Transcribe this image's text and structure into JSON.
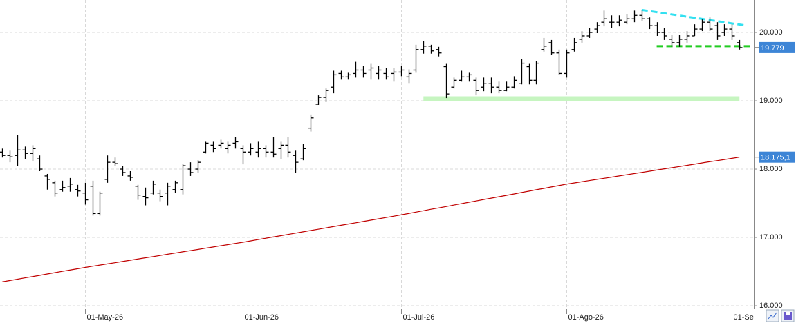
{
  "chart_data": {
    "type": "ohlc",
    "categories": [
      null,
      null,
      null,
      null,
      null,
      null,
      null,
      null,
      null,
      null,
      null,
      "01-May-26",
      null,
      null,
      null,
      null,
      null,
      null,
      null,
      null,
      null,
      null,
      null,
      null,
      null,
      null,
      null,
      null,
      null,
      null,
      null,
      null,
      "01-Jun-26",
      null,
      null,
      null,
      null,
      null,
      null,
      null,
      null,
      null,
      null,
      null,
      null,
      null,
      null,
      null,
      null,
      null,
      null,
      null,
      null,
      "01-Jul-26",
      null,
      null,
      null,
      null,
      null,
      null,
      null,
      null,
      null,
      null,
      null,
      null,
      null,
      null,
      null,
      null,
      null,
      null,
      null,
      null,
      null,
      "01-Ago-26",
      null,
      null,
      null,
      null,
      null,
      null,
      null,
      null,
      null,
      null,
      null,
      null,
      null,
      null,
      null,
      null,
      null,
      null,
      null,
      null,
      null,
      "01-Se",
      null
    ],
    "color": "#000000",
    "open": [
      18250,
      18200,
      18200,
      18280,
      18230,
      18150,
      17900,
      17800,
      17700,
      17750,
      17700,
      17650,
      17750,
      17350,
      17850,
      18100,
      18000,
      17900,
      17750,
      17600,
      17650,
      17650,
      17650,
      17700,
      17700,
      18000,
      18000,
      18250,
      18350,
      18350,
      18300,
      18380,
      18300,
      18250,
      18250,
      18300,
      18250,
      18300,
      18350,
      18200,
      18150,
      18600,
      18950,
      19050,
      19200,
      19400,
      19350,
      19400,
      19450,
      19450,
      19400,
      19400,
      19400,
      19420,
      19350,
      19450,
      19750,
      19800,
      19750,
      19500,
      19200,
      19300,
      19350,
      19300,
      19200,
      19250,
      19200,
      19150,
      19200,
      19250,
      19500,
      19300,
      19750,
      19850,
      19700,
      19400,
      19750,
      19900,
      19950,
      20050,
      20150,
      20150,
      20150,
      20150,
      20200,
      20250,
      20200,
      20100,
      20000,
      19900,
      19850,
      19900,
      19950,
      20050,
      20150,
      20100,
      20000,
      20050,
      19850
    ],
    "high": [
      18300,
      18270,
      18500,
      18330,
      18350,
      18200,
      17930,
      17830,
      17830,
      17870,
      17770,
      17800,
      17830,
      17670,
      18200,
      18170,
      18050,
      17970,
      17770,
      17730,
      17830,
      17700,
      17800,
      17830,
      18070,
      18100,
      18130,
      18400,
      18400,
      18430,
      18400,
      18470,
      18350,
      18380,
      18400,
      18350,
      18470,
      18400,
      18470,
      18270,
      18370,
      18800,
      19080,
      19180,
      19440,
      19440,
      19410,
      19570,
      19510,
      19540,
      19510,
      19480,
      19480,
      19510,
      19460,
      19820,
      19870,
      19820,
      19790,
      19540,
      19340,
      19440,
      19410,
      19340,
      19340,
      19340,
      19280,
      19280,
      19360,
      19610,
      19540,
      19580,
      19920,
      19890,
      19750,
      19750,
      19920,
      20020,
      20070,
      20150,
      20320,
      20250,
      20250,
      20270,
      20320,
      20320,
      20220,
      20150,
      20070,
      19970,
      19970,
      20020,
      20120,
      20190,
      20220,
      20150,
      20120,
      20120,
      19890
    ],
    "low": [
      18170,
      18100,
      18050,
      18150,
      18120,
      17970,
      17700,
      17600,
      17670,
      17670,
      17600,
      17480,
      17320,
      17320,
      17800,
      18050,
      17900,
      17830,
      17550,
      17470,
      17630,
      17530,
      17470,
      17650,
      17630,
      17900,
      17950,
      18230,
      18250,
      18300,
      18230,
      18300,
      18070,
      18200,
      18170,
      18170,
      18170,
      18150,
      18170,
      17950,
      18130,
      18550,
      18940,
      18980,
      19110,
      19310,
      19310,
      19340,
      19340,
      19310,
      19310,
      19310,
      19280,
      19360,
      19260,
      19410,
      19690,
      19690,
      19650,
      19040,
      19180,
      19280,
      19280,
      19080,
      19140,
      19110,
      19110,
      19140,
      19180,
      19240,
      19240,
      19240,
      19720,
      19670,
      19380,
      19340,
      19720,
      19850,
      19920,
      19990,
      20090,
      20070,
      20090,
      20120,
      20150,
      20170,
      20050,
      19950,
      19890,
      19790,
      19790,
      19850,
      19950,
      20020,
      20020,
      19890,
      19950,
      19890,
      19750
    ],
    "close": [
      18200,
      18180,
      18280,
      18230,
      18300,
      18000,
      17850,
      17650,
      17730,
      17780,
      17680,
      17550,
      17350,
      17650,
      18100,
      18080,
      17950,
      17880,
      17620,
      17580,
      17780,
      17600,
      17750,
      17800,
      18050,
      17950,
      18100,
      18380,
      18300,
      18380,
      18350,
      18400,
      18250,
      18300,
      18300,
      18250,
      18220,
      18350,
      18250,
      18100,
      18300,
      18750,
      19050,
      19150,
      19380,
      19350,
      19380,
      19450,
      19400,
      19480,
      19450,
      19350,
      19420,
      19450,
      19400,
      19750,
      19800,
      19730,
      19700,
      19100,
      19300,
      19350,
      19380,
      19150,
      19250,
      19200,
      19150,
      19200,
      19300,
      19550,
      19300,
      19550,
      19800,
      19700,
      19400,
      19700,
      19850,
      19950,
      20000,
      20100,
      20200,
      20150,
      20180,
      20200,
      20250,
      20200,
      20100,
      20000,
      19950,
      19850,
      19900,
      19950,
      20050,
      20150,
      20050,
      19950,
      20050,
      19950,
      19779
    ],
    "lines": [
      {
        "color": "#c00000",
        "values": [
          16350,
          16369,
          16388,
          16407,
          16426,
          16445,
          16465,
          16484,
          16503,
          16522,
          16541,
          16560,
          16578,
          16595,
          16613,
          16630,
          16648,
          16666,
          16683,
          16701,
          16718,
          16736,
          16754,
          16771,
          16789,
          16806,
          16824,
          16842,
          16859,
          16877,
          16894,
          16912,
          16930,
          16949,
          16968,
          16987,
          17006,
          17025,
          17044,
          17063,
          17082,
          17101,
          17120,
          17139,
          17158,
          17177,
          17196,
          17215,
          17234,
          17253,
          17272,
          17291,
          17310,
          17330,
          17350,
          17371,
          17391,
          17412,
          17432,
          17452,
          17473,
          17493,
          17514,
          17534,
          17555,
          17575,
          17595,
          17616,
          17636,
          17657,
          17677,
          17698,
          17718,
          17739,
          17759,
          17780,
          17797,
          17814,
          17832,
          17849,
          17866,
          17883,
          17900,
          17918,
          17935,
          17952,
          17969,
          17986,
          18004,
          18021,
          18038,
          18055,
          18072,
          18090,
          18107,
          18124,
          18141,
          18158,
          18175.1
        ]
      }
    ],
    "drawings": [
      {
        "kind": "band",
        "color": "#c6f5c0",
        "x": [
          56,
          98
        ],
        "y": [
          19030,
          19030
        ]
      },
      {
        "kind": "dashed",
        "color": "#33e0f0",
        "x": [
          85,
          99
        ],
        "y": [
          20330,
          20100
        ]
      },
      {
        "kind": "dashed",
        "color": "#22cc22",
        "x": [
          87,
          99.5
        ],
        "y": [
          19800,
          19800
        ]
      }
    ],
    "price_labels": [
      {
        "value": 19779,
        "label": "19.779",
        "color": "#3d85d6"
      },
      {
        "value": 18175.1,
        "label": "18.175,1",
        "color": "#3d85d6"
      }
    ],
    "ylim": [
      15960,
      20475
    ],
    "yticks": [
      {
        "value": 16000,
        "label": "16.000"
      },
      {
        "value": 17000,
        "label": "17.000"
      },
      {
        "value": 18000,
        "label": "18.000"
      },
      {
        "value": 19000,
        "label": "19.000"
      },
      {
        "value": 20000,
        "label": "20.000"
      }
    ],
    "grid": true
  }
}
